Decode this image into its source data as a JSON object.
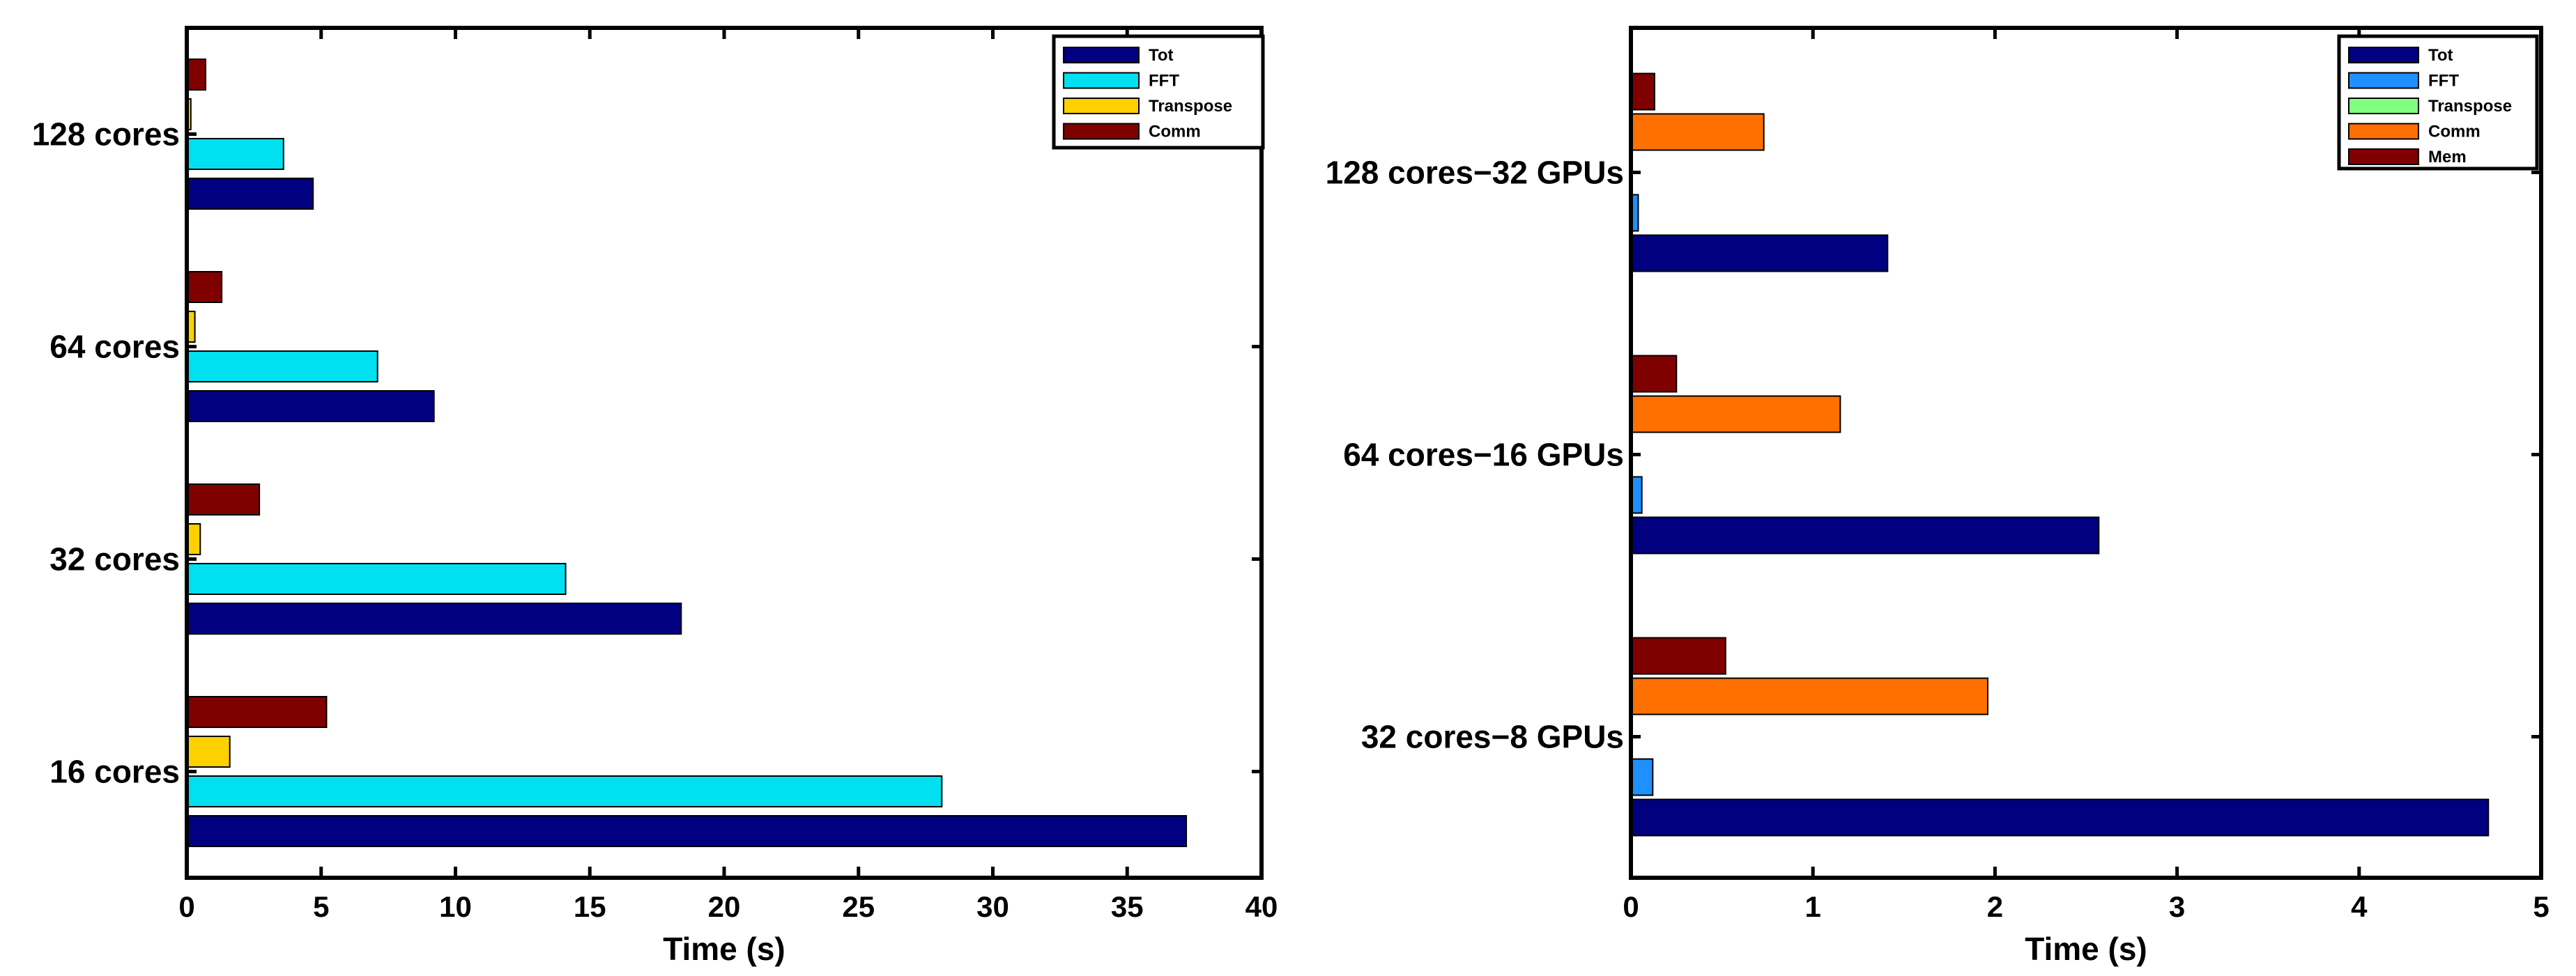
{
  "chart_data": [
    {
      "type": "bar",
      "orientation": "horizontal",
      "title": "",
      "xlabel": "Time (s)",
      "ylabel": "",
      "xlim": [
        0,
        40
      ],
      "xticks": [
        "0",
        "5",
        "10",
        "15",
        "20",
        "25",
        "30",
        "35",
        "40"
      ],
      "categories": [
        "16 cores",
        "32 cores",
        "64 cores",
        "128 cores"
      ],
      "series": [
        {
          "name": "Tot",
          "color": "#000080",
          "values": [
            37.2,
            18.4,
            9.2,
            4.7
          ]
        },
        {
          "name": "FFT",
          "color": "#00e0f0",
          "values": [
            28.1,
            14.1,
            7.1,
            3.6
          ]
        },
        {
          "name": "Transpose",
          "color": "#ffd000",
          "values": [
            1.6,
            0.5,
            0.3,
            0.15
          ]
        },
        {
          "name": "Comm",
          "color": "#800000",
          "values": [
            5.2,
            2.7,
            1.3,
            0.7
          ]
        }
      ],
      "legend_position": "top-right",
      "grid": false
    },
    {
      "type": "bar",
      "orientation": "horizontal",
      "title": "",
      "xlabel": "Time (s)",
      "ylabel": "",
      "xlim": [
        0,
        5
      ],
      "xticks": [
        "0",
        "1",
        "2",
        "3",
        "4",
        "5"
      ],
      "categories": [
        "32 cores−8 GPUs",
        "64 cores−16 GPUs",
        "128 cores−32 GPUs"
      ],
      "series": [
        {
          "name": "Tot",
          "color": "#000080",
          "values": [
            4.71,
            2.57,
            1.41
          ]
        },
        {
          "name": "FFT",
          "color": "#1e90ff",
          "values": [
            0.12,
            0.06,
            0.04
          ]
        },
        {
          "name": "Transpose",
          "color": "#80ff80",
          "values": [
            0.0,
            0.0,
            0.0
          ]
        },
        {
          "name": "Comm",
          "color": "#ff7000",
          "values": [
            1.96,
            1.15,
            0.73
          ]
        },
        {
          "name": "Mem",
          "color": "#800000",
          "values": [
            0.52,
            0.25,
            0.13
          ]
        }
      ],
      "legend_position": "top-right",
      "grid": false
    }
  ]
}
